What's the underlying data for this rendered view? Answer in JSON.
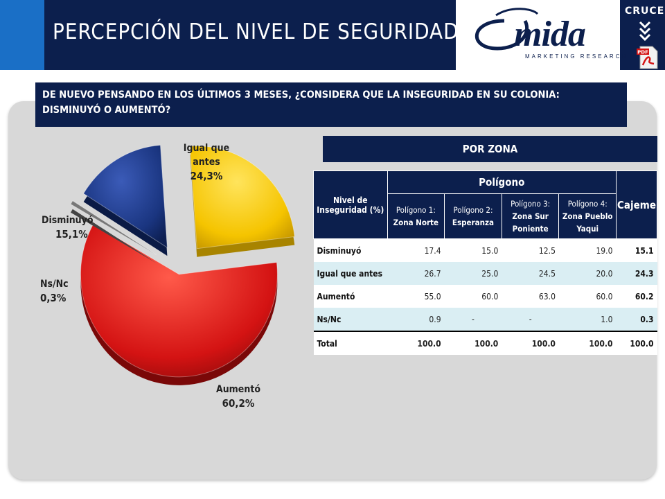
{
  "header": {
    "title": "PERCEPCIÓN DEL NIVEL DE SEGURIDAD",
    "logo_name": "mida",
    "logo_subtitle": "MARKETING RESEARCH",
    "cruces_label": "CRUCES"
  },
  "question": "DE NUEVO PENSANDO EN LOS ÚLTIMOS 3 MESES, ¿CONSIDERA QUE LA INSEGURIDAD EN SU COLONIA: DISMINUYÓ O AUMENTÓ?",
  "zone_label": "POR ZONA",
  "chart_data": {
    "type": "pie",
    "slices": [
      {
        "label": "Igual que antes",
        "value": 24.3,
        "display": "24,3%",
        "color": "#f5c400"
      },
      {
        "label": "Aumentó",
        "value": 60.2,
        "display": "60,2%",
        "color": "#d41313"
      },
      {
        "label": "Ns/Nc",
        "value": 0.3,
        "display": "0,3%",
        "color": "#777777"
      },
      {
        "label": "Disminuyó",
        "value": 15.1,
        "display": "15,1%",
        "color": "#1a3580"
      }
    ]
  },
  "pie_labels": {
    "igual_name_1": "Igual que",
    "igual_name_2": "antes",
    "igual_pct": "24,3%",
    "disminuyo_name": "Disminuyó",
    "disminuyo_pct": "15,1%",
    "nsnc_name": "Ns/Nc",
    "nsnc_pct": "0,3%",
    "aumento_name": "Aumentó",
    "aumento_pct": "60,2%"
  },
  "table": {
    "col_nivel": "Nivel de Inseguridad (%)",
    "col_poligono": "Polígono",
    "col_cajeme": "Cajeme",
    "sub": [
      {
        "prefix": "Polígono 1:",
        "name": "Zona Norte"
      },
      {
        "prefix": "Polígono 2:",
        "name": "Esperanza"
      },
      {
        "prefix": "Polígono 3:",
        "name": "Zona Sur Poniente"
      },
      {
        "prefix": "Polígono 4:",
        "name": "Zona Pueblo Yaqui"
      }
    ],
    "rows": [
      {
        "label": "Disminuyó",
        "p1": "17.4",
        "p2": "15.0",
        "p3": "12.5",
        "p4": "19.0",
        "cajeme": "15.1"
      },
      {
        "label": "Igual que antes",
        "p1": "26.7",
        "p2": "25.0",
        "p3": "24.5",
        "p4": "20.0",
        "cajeme": "24.3"
      },
      {
        "label": "Aumentó",
        "p1": "55.0",
        "p2": "60.0",
        "p3": "63.0",
        "p4": "60.0",
        "cajeme": "60.2"
      },
      {
        "label": "Ns/Nc",
        "p1": "0.9",
        "p2": "-",
        "p3": "-",
        "p4": "1.0",
        "cajeme": "0.3"
      },
      {
        "label": "Total",
        "p1": "100.0",
        "p2": "100.0",
        "p3": "100.0",
        "p4": "100.0",
        "cajeme": "100.0"
      }
    ]
  }
}
